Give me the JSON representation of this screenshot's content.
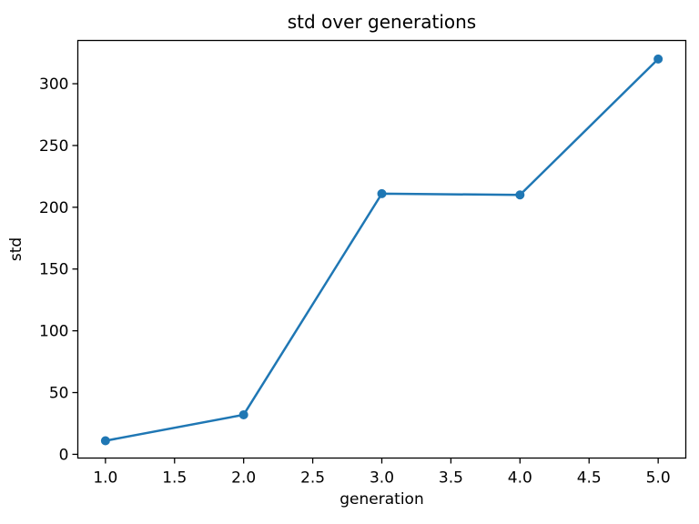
{
  "chart_data": {
    "type": "line",
    "title": "std over generations",
    "xlabel": "generation",
    "ylabel": "std",
    "x": [
      1,
      2,
      3,
      4,
      5
    ],
    "y": [
      11,
      32,
      211,
      210,
      320
    ],
    "series_name": "std",
    "series_color": "#1f77b4",
    "marker": "circle",
    "line_style": "solid",
    "grid": false,
    "legend": null,
    "xlim": [
      0.8,
      5.2
    ],
    "ylim": [
      -3,
      335
    ],
    "xtick_values": [
      1.0,
      1.5,
      2.0,
      2.5,
      3.0,
      3.5,
      4.0,
      4.5,
      5.0
    ],
    "xtick_labels": [
      "1.0",
      "1.5",
      "2.0",
      "2.5",
      "3.0",
      "3.5",
      "4.0",
      "4.5",
      "5.0"
    ],
    "ytick_values": [
      0,
      50,
      100,
      150,
      200,
      250,
      300
    ],
    "ytick_labels": [
      "0",
      "50",
      "100",
      "150",
      "200",
      "250",
      "300"
    ]
  }
}
